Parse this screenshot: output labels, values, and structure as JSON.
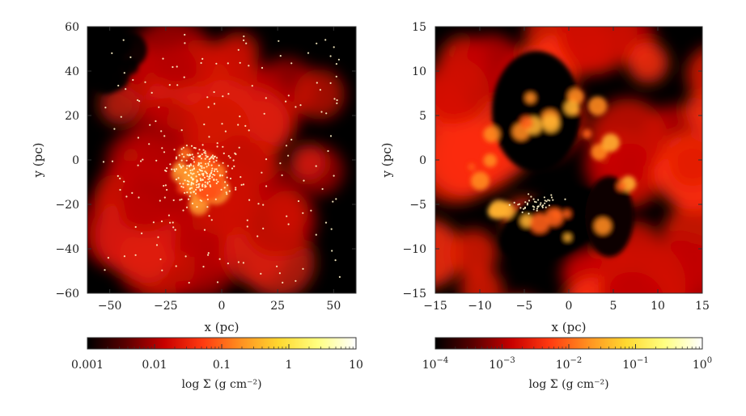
{
  "chart_data": [
    {
      "type": "heatmap",
      "title": "",
      "xlabel": "x (pc)",
      "ylabel": "y (pc)",
      "xlim": [
        -60,
        60
      ],
      "ylim": [
        -60,
        60
      ],
      "x_ticks": [
        "−50",
        "−25",
        "0",
        "25",
        "50"
      ],
      "x_tick_values": [
        -50,
        -25,
        0,
        25,
        50
      ],
      "y_ticks": [
        "60",
        "40",
        "20",
        "0",
        "−20",
        "−40",
        "−60"
      ],
      "y_tick_values": [
        60,
        40,
        20,
        0,
        -20,
        -40,
        -60
      ],
      "colorbar": {
        "label": "log Σ (g cm⁻²)",
        "scale": "log",
        "range": [
          0.001,
          10
        ],
        "ticks": [
          "0.001",
          "0.01",
          "0.1",
          "1",
          "10"
        ],
        "tick_values": [
          0.001,
          0.01,
          0.1,
          1,
          10
        ]
      },
      "colormap": [
        "#000000",
        "#5a0000",
        "#c80000",
        "#ff3a10",
        "#ff9020",
        "#ffd830",
        "#ffff80",
        "#ffffff"
      ],
      "point_color": "#fff3c8"
    },
    {
      "type": "heatmap",
      "title": "",
      "xlabel": "x (pc)",
      "ylabel": "y (pc)",
      "xlim": [
        -15,
        15
      ],
      "ylim": [
        -15,
        15
      ],
      "x_ticks": [
        "−15",
        "−10",
        "−5",
        "0",
        "5",
        "10",
        "15"
      ],
      "x_tick_values": [
        -15,
        -10,
        -5,
        0,
        5,
        10,
        15
      ],
      "y_ticks": [
        "15",
        "10",
        "5",
        "0",
        "−5",
        "−10",
        "−15"
      ],
      "y_tick_values": [
        15,
        10,
        5,
        0,
        -5,
        -10,
        -15
      ],
      "colorbar": {
        "label": "log Σ (g cm⁻²)",
        "scale": "log",
        "range": [
          0.0001,
          1
        ],
        "ticks": [
          {
            "base": "10",
            "exp": "−4"
          },
          {
            "base": "10",
            "exp": "−3"
          },
          {
            "base": "10",
            "exp": "−2"
          },
          {
            "base": "10",
            "exp": "−1"
          },
          {
            "base": "10",
            "exp": "0"
          }
        ],
        "tick_values": [
          0.0001,
          0.001,
          0.01,
          0.1,
          1
        ]
      },
      "colormap": [
        "#000000",
        "#5a0000",
        "#c80000",
        "#ff3a10",
        "#ff9020",
        "#ffd830",
        "#ffff80",
        "#ffffff"
      ],
      "point_color": "#fff3c8"
    }
  ]
}
